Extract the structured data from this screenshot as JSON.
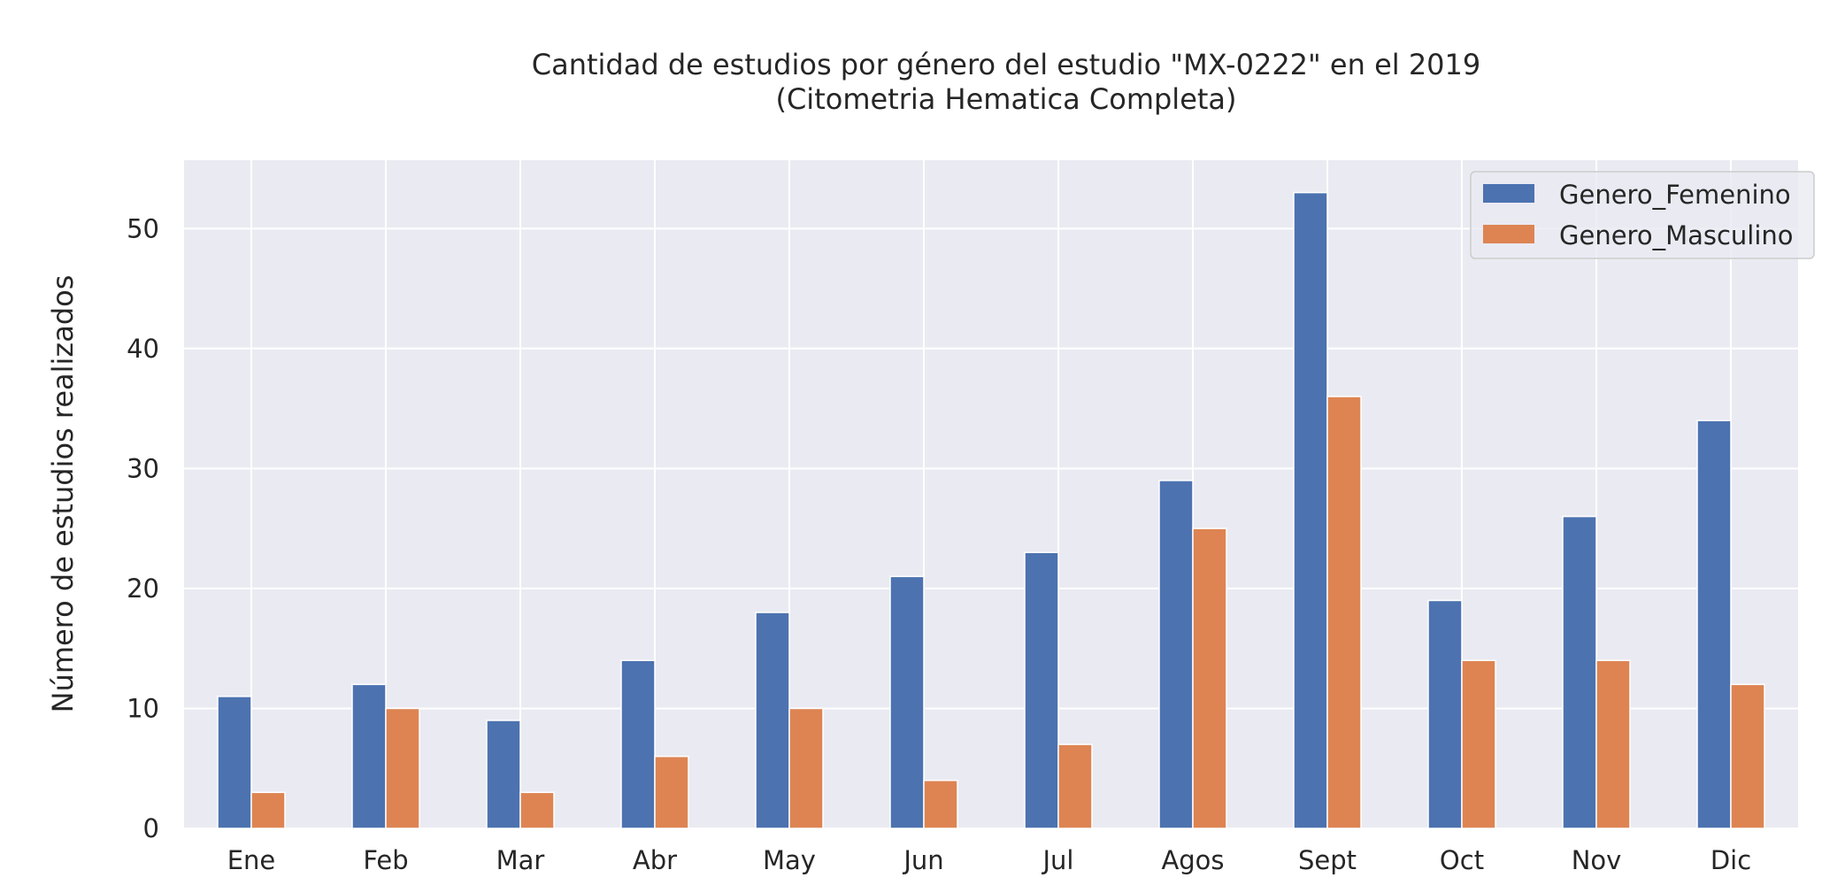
{
  "chart_data": {
    "type": "bar",
    "title": "Cantidad de estudios por género del estudio \"MX-0222\" en el 2019",
    "subtitle": "(Citometria Hematica Completa)",
    "xlabel": "",
    "ylabel": "Número de estudios realizados",
    "categories": [
      "Ene",
      "Feb",
      "Mar",
      "Abr",
      "May",
      "Jun",
      "Jul",
      "Agos",
      "Sept",
      "Oct",
      "Nov",
      "Dic"
    ],
    "series": [
      {
        "name": "Genero_Femenino",
        "color": "#4c72b0",
        "values": [
          11,
          12,
          9,
          14,
          18,
          21,
          23,
          29,
          53,
          19,
          26,
          34
        ]
      },
      {
        "name": "Genero_Masculino",
        "color": "#dd8452",
        "values": [
          3,
          10,
          3,
          6,
          10,
          4,
          7,
          25,
          36,
          14,
          14,
          12
        ]
      }
    ],
    "ylim": [
      0,
      55.7
    ],
    "yticks": [
      0,
      10,
      20,
      30,
      40,
      50
    ],
    "grid": true,
    "legend_position": "top-right",
    "background_color": "#eaeaf2",
    "grid_color": "#ffffff"
  }
}
